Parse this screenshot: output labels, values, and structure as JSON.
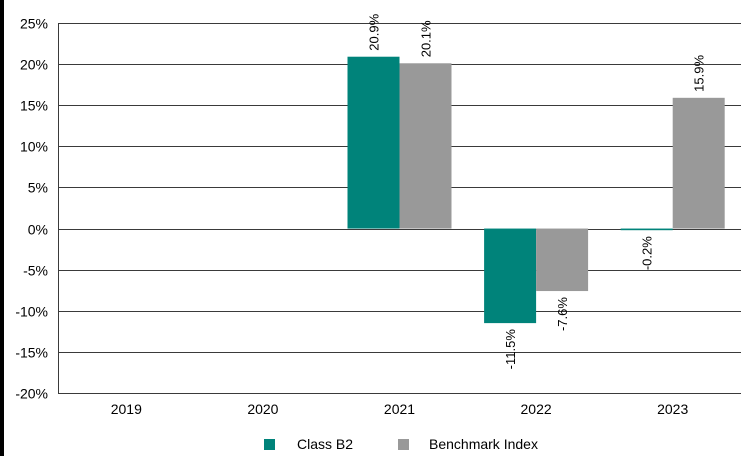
{
  "chart_data": {
    "type": "bar",
    "title": "",
    "xlabel": "",
    "ylabel": "",
    "categories": [
      "2019",
      "2020",
      "2021",
      "2022",
      "2023"
    ],
    "series": [
      {
        "name": "Class B2",
        "color": "#00837a",
        "values": [
          null,
          null,
          20.9,
          -11.5,
          -0.2
        ],
        "labels": [
          "",
          "",
          "20.9%",
          "-11.5%",
          "-0.2%"
        ]
      },
      {
        "name": "Benchmark Index",
        "color": "#999999",
        "values": [
          null,
          null,
          20.1,
          -7.6,
          15.9
        ],
        "labels": [
          "",
          "",
          "20.1%",
          "-7.6%",
          "15.9%"
        ]
      }
    ],
    "ylim": [
      -20,
      25
    ],
    "yticks": [
      25,
      20,
      15,
      10,
      5,
      0,
      -5,
      -10,
      -15,
      -20
    ],
    "ytick_labels": [
      "25%",
      "20%",
      "15%",
      "10%",
      "5%",
      "0%",
      "-5%",
      "-10%",
      "-15%",
      "-20%"
    ],
    "grid": true,
    "legend_position": "bottom-center"
  }
}
